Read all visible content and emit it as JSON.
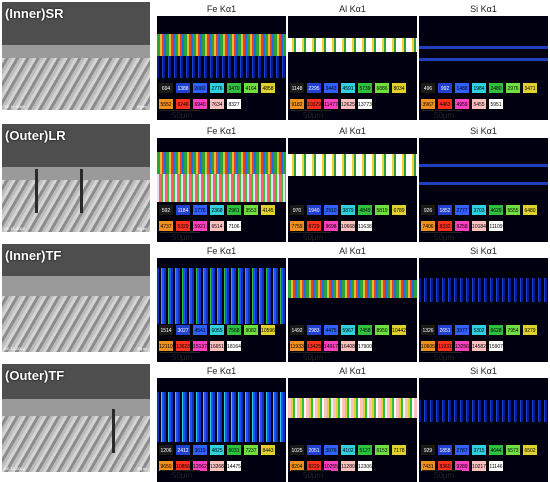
{
  "rows": [
    {
      "label": "(Inner)SR",
      "sem_footer": "SE 15.00kV",
      "scale": "50μm",
      "fe": {
        "title": "Fe Kα1",
        "values": [
          "694",
          "1388",
          "2082",
          "2776",
          "3470",
          "4164",
          "4858",
          "5552",
          "6246",
          "6940",
          "7634",
          "8327"
        ]
      },
      "al": {
        "title": "Al Kα1",
        "values": [
          "1148",
          "2295",
          "3443",
          "4591",
          "5739",
          "6886",
          "8034",
          "9182",
          "10329",
          "11477",
          "12625",
          "13773"
        ]
      },
      "si": {
        "title": "Si Kα1",
        "values": [
          "496",
          "992",
          "1488",
          "1984",
          "2480",
          "2976",
          "3471",
          "3967",
          "4463",
          "4959",
          "5455",
          "5951"
        ]
      },
      "scale_bar": "50μm"
    },
    {
      "label": "(Outer)LR",
      "sem_footer": "SE 15.00kV",
      "scale": "50μm",
      "fe": {
        "title": "Fe Kα1",
        "values": [
          "592",
          "1184",
          "1776",
          "2368",
          "2961",
          "3553",
          "4145",
          "4737",
          "5329",
          "5921",
          "6514",
          "7106"
        ]
      },
      "al": {
        "title": "Al Kα1",
        "values": [
          "970",
          "1940",
          "2910",
          "3879",
          "4849",
          "5819",
          "6789",
          "7759",
          "8729",
          "9698",
          "10668",
          "11638"
        ]
      },
      "si": {
        "title": "Si Kα1",
        "values": [
          "926",
          "1852",
          "2777",
          "3703",
          "4629",
          "5555",
          "6480",
          "7406",
          "8332",
          "9258",
          "10184",
          "11109"
        ]
      },
      "scale_bar": "50μm"
    },
    {
      "label": "(Inner)TF",
      "sem_footer": "SE 15.00kV",
      "scale": "50μm",
      "fe": {
        "title": "Fe Kα1",
        "values": [
          "1514",
          "3027",
          "4541",
          "6055",
          "7568",
          "9082",
          "10596",
          "12110",
          "13623",
          "15137",
          "16651",
          "18164"
        ]
      },
      "al": {
        "title": "Al Kα1",
        "values": [
          "1492",
          "2983",
          "4475",
          "5967",
          "7458",
          "8950",
          "10442",
          "11933",
          "13425",
          "14917",
          "16408",
          "17900"
        ]
      },
      "si": {
        "title": "Si Kα1",
        "values": [
          "1326",
          "2651",
          "3977",
          "5302",
          "6628",
          "7954",
          "9279",
          "10605",
          "11931",
          "13256",
          "14582",
          "15907"
        ]
      },
      "scale_bar": "50μm"
    },
    {
      "label": "(Outer)TF",
      "sem_footer": "SE 15.00kV",
      "scale": "50μm",
      "fe": {
        "title": "Fe Kα1",
        "values": [
          "1206",
          "2412",
          "3619",
          "4825",
          "6031",
          "7237",
          "8443",
          "9650",
          "10856",
          "12062",
          "13268",
          "14475"
        ]
      },
      "al": {
        "title": "Al Kα1",
        "values": [
          "1025",
          "2051",
          "3076",
          "4102",
          "5127",
          "6153",
          "7178",
          "8204",
          "9229",
          "10255",
          "11280",
          "12306"
        ]
      },
      "si": {
        "title": "Si Kα1",
        "values": [
          "929",
          "1858",
          "2787",
          "3715",
          "4644",
          "5573",
          "6502",
          "7431",
          "8360",
          "9289",
          "10217",
          "11146"
        ]
      },
      "scale_bar": "50μm"
    }
  ],
  "palette_colors": [
    "#1a1a1a",
    "#2040d0",
    "#3060ff",
    "#30d0e0",
    "#30c040",
    "#70e040",
    "#e0d030",
    "#f09020",
    "#ff3020",
    "#ff40c0",
    "#ffc0c0",
    "#ffffff"
  ]
}
